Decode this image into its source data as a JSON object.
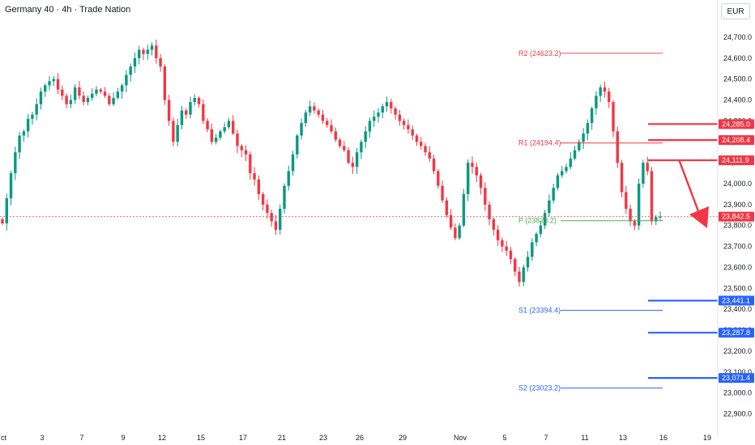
{
  "header": {
    "title": "Germany 40 · 4h · Trade Nation",
    "currency": "EUR"
  },
  "colors": {
    "up": "#089981",
    "down": "#f23645",
    "resistance": "#f23645",
    "support": "#2962ff",
    "pivot": "#4caf50",
    "arrow": "#f23645",
    "current": "#f23645"
  },
  "chart_data": {
    "type": "candlestick",
    "y_ticks": [
      "24,700.0",
      "24,600.0",
      "24,500.0",
      "24,400.0",
      "24,300.0",
      "24,200.0",
      "24,100.0",
      "24,000.0",
      "23,900.0",
      "23,800.0",
      "23,700.0",
      "23,600.0",
      "23,500.0",
      "23,400.0",
      "23,300.0",
      "23,200.0",
      "23,100.0",
      "23,000.0",
      "22,900.0"
    ],
    "y_values": [
      24700,
      24600,
      24500,
      24400,
      24300,
      24200,
      24100,
      24000,
      23900,
      23800,
      23700,
      23600,
      23500,
      23400,
      23300,
      23200,
      23100,
      23000,
      22900
    ],
    "x_ticks": [
      "ct",
      "3",
      "7",
      "9",
      "12",
      "15",
      "17",
      "21",
      "23",
      "26",
      "29",
      "Nov",
      "5",
      "7",
      "11",
      "13",
      "16",
      "19"
    ],
    "pivots": [
      {
        "label": "R2 (24623.2)",
        "value": 24623.2,
        "kind": "resistance"
      },
      {
        "label": "R1 (24194.4)",
        "value": 24194.4,
        "kind": "resistance"
      },
      {
        "label": "P (23823.2)",
        "value": 23823.2,
        "kind": "pivot"
      },
      {
        "label": "S1 (23394.4)",
        "value": 23394.4,
        "kind": "support"
      },
      {
        "label": "S2 (23023.2)",
        "value": 23023.2,
        "kind": "support"
      }
    ],
    "levels": [
      {
        "label": "24,285.0",
        "value": 24285.0,
        "kind": "resistance"
      },
      {
        "label": "24,208.4",
        "value": 24208.4,
        "kind": "resistance"
      },
      {
        "label": "24,111.9",
        "value": 24111.9,
        "kind": "resistance"
      },
      {
        "label": "23,441.1",
        "value": 23441.1,
        "kind": "support"
      },
      {
        "label": "23,287.8",
        "value": 23287.8,
        "kind": "support"
      },
      {
        "label": "23,071.4",
        "value": 23071.4,
        "kind": "support"
      }
    ],
    "current_price": {
      "label": "23,842.5",
      "value": 23842.5
    },
    "closes": [
      23810,
      23930,
      24050,
      24150,
      24230,
      24250,
      24310,
      24330,
      24380,
      24440,
      24470,
      24490,
      24500,
      24450,
      24420,
      24380,
      24400,
      24460,
      24420,
      24390,
      24410,
      24430,
      24450,
      24440,
      24420,
      24380,
      24410,
      24440,
      24470,
      24520,
      24560,
      24600,
      24640,
      24620,
      24640,
      24660,
      24600,
      24560,
      24400,
      24300,
      24200,
      24280,
      24350,
      24330,
      24390,
      24410,
      24380,
      24300,
      24260,
      24200,
      24220,
      24250,
      24270,
      24300,
      24240,
      24180,
      24160,
      24140,
      24050,
      24020,
      23950,
      23900,
      23860,
      23820,
      23780,
      23880,
      23990,
      24060,
      24140,
      24230,
      24290,
      24340,
      24370,
      24350,
      24330,
      24300,
      24280,
      24250,
      24210,
      24180,
      24160,
      24100,
      24080,
      24150,
      24200,
      24250,
      24300,
      24320,
      24340,
      24370,
      24390,
      24360,
      24330,
      24300,
      24280,
      24260,
      24230,
      24200,
      24180,
      24150,
      24120,
      24060,
      23990,
      23920,
      23850,
      23790,
      23740,
      23800,
      23950,
      24100,
      24080,
      24040,
      23980,
      23900,
      23830,
      23780,
      23730,
      23700,
      23680,
      23640,
      23580,
      23530,
      23600,
      23650,
      23720,
      23760,
      23800,
      23860,
      23920,
      23980,
      24040,
      24060,
      24080,
      24120,
      24160,
      24200,
      24240,
      24290,
      24360,
      24420,
      24460,
      24440,
      24390,
      24250,
      24100,
      23960,
      23880,
      23820,
      23800,
      24000,
      24100,
      24060,
      23820,
      23840,
      23842
    ]
  }
}
